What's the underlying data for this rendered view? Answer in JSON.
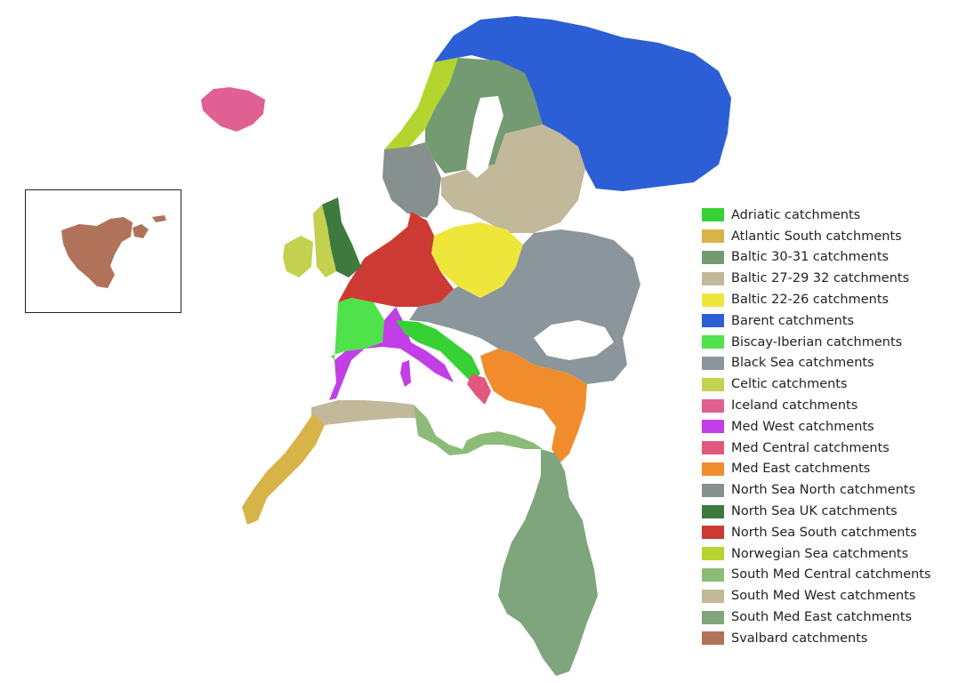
{
  "legend": {
    "items": [
      {
        "label": "Adriatic catchments",
        "color": "#36d135"
      },
      {
        "label": "Atlantic South catchments",
        "color": "#d8b347"
      },
      {
        "label": "Baltic 30-31 catchments",
        "color": "#749a72"
      },
      {
        "label": "Baltic 27-29 32 catchments",
        "color": "#c2b89a"
      },
      {
        "label": "Baltic 22-26 catchments",
        "color": "#efe63c"
      },
      {
        "label": "Barent catchments",
        "color": "#2c5fd6"
      },
      {
        "label": "Biscay-Iberian catchments",
        "color": "#4fe24a"
      },
      {
        "label": "Black Sea catchments",
        "color": "#8a969b"
      },
      {
        "label": "Celtic catchments",
        "color": "#c4d04f"
      },
      {
        "label": "Iceland catchments",
        "color": "#e06092"
      },
      {
        "label": "Med West catchments",
        "color": "#c23ee6"
      },
      {
        "label": "Med Central catchments",
        "color": "#e1587f"
      },
      {
        "label": "Med East catchments",
        "color": "#f08c2c"
      },
      {
        "label": "North Sea North catchments",
        "color": "#86918f"
      },
      {
        "label": "North Sea UK catchments",
        "color": "#3e7a3d"
      },
      {
        "label": "North Sea South catchments",
        "color": "#cd3a33"
      },
      {
        "label": "Norwegian Sea catchments",
        "color": "#b3d52d"
      },
      {
        "label": "South Med Central catchments",
        "color": "#8dbb78"
      },
      {
        "label": "South Med West catchments",
        "color": "#c2b89a"
      },
      {
        "label": "South Med East catchments",
        "color": "#7fa57d"
      },
      {
        "label": "Svalbard catchments",
        "color": "#b0735a"
      }
    ]
  }
}
